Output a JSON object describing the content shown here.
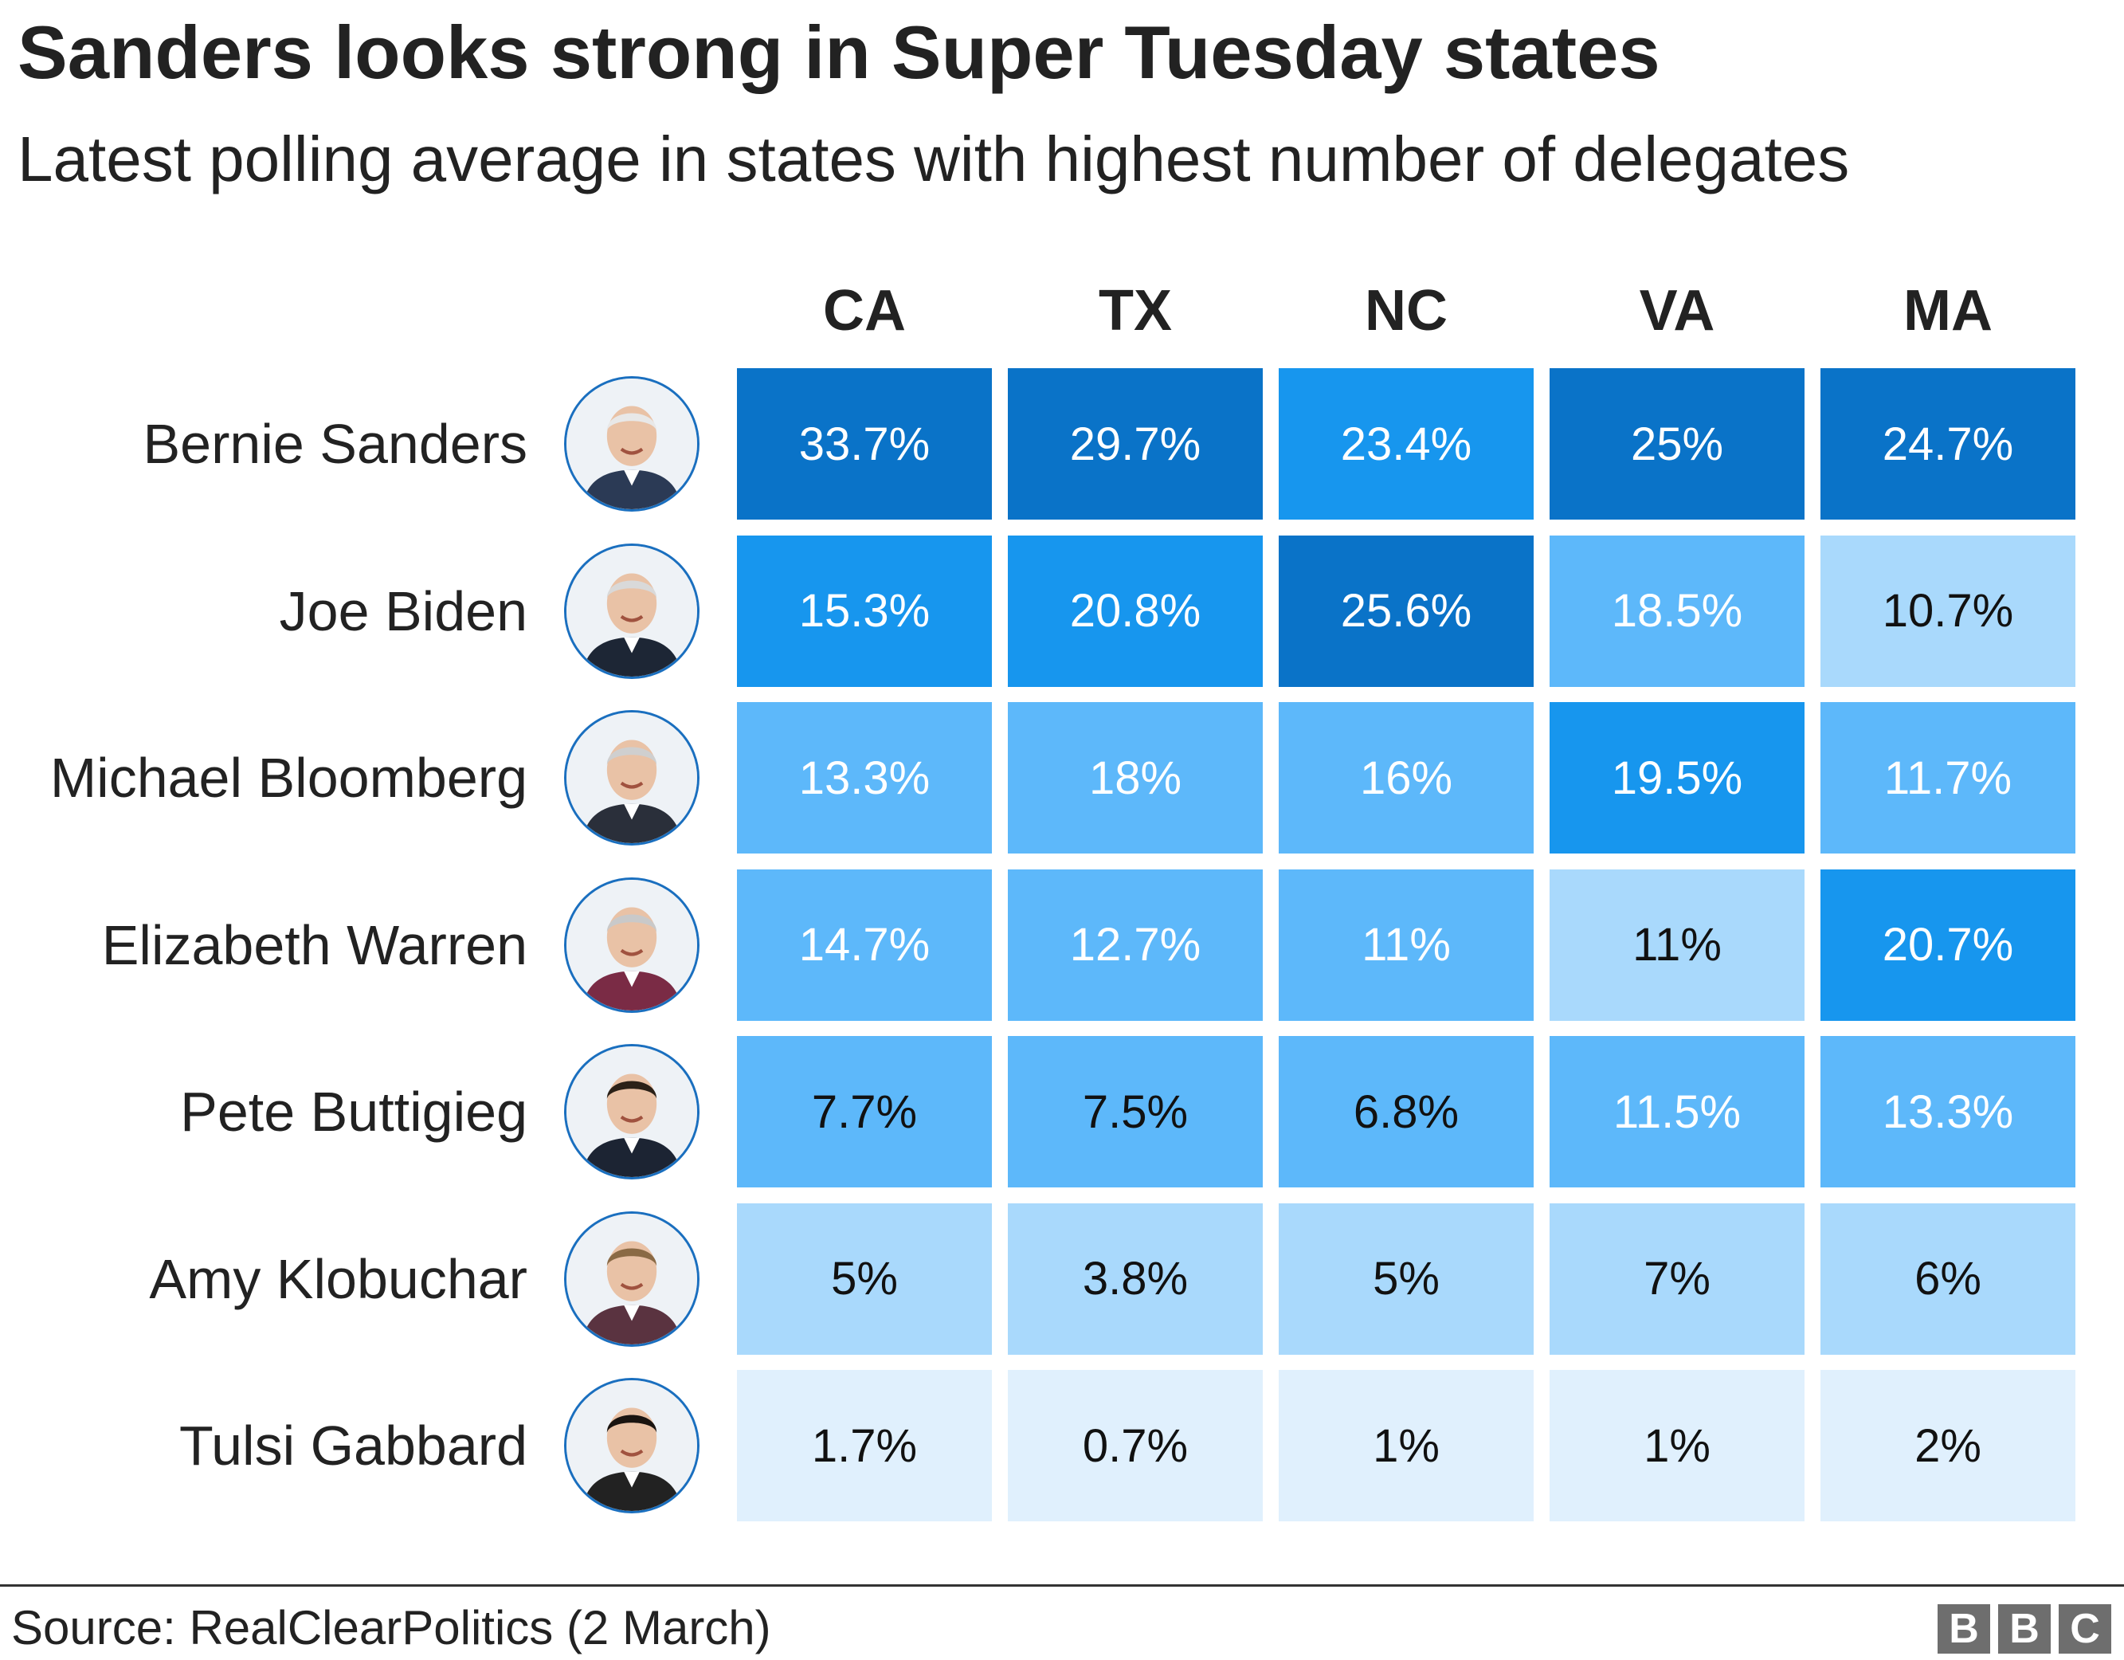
{
  "title": "Sanders looks strong in Super Tuesday states",
  "subtitle": "Latest polling average in states with highest number of delegates",
  "source": "Source: RealClearPolitics (2 March)",
  "logo": [
    "B",
    "B",
    "C"
  ],
  "colors": {
    "darkest": "#0a73c8",
    "dark": "#1796ee",
    "mid": "#5db8fa",
    "light": "#a9d9fc",
    "lightest": "#e0f0fd",
    "text_light": "#ffffff",
    "text_dark": "#111111"
  },
  "chart_data": {
    "type": "table",
    "title": "Sanders looks strong in Super Tuesday states",
    "subtitle": "Latest polling average in states with highest number of delegates",
    "columns": [
      "CA",
      "TX",
      "NC",
      "VA",
      "MA"
    ],
    "rows": [
      {
        "name": "Bernie Sanders",
        "avatar": "bernie-sanders-avatar",
        "values": [
          33.7,
          29.7,
          23.4,
          25,
          24.7
        ],
        "labels": [
          "33.7%",
          "29.7%",
          "23.4%",
          "25%",
          "24.7%"
        ],
        "shade": [
          "darkest",
          "darkest",
          "dark",
          "darkest",
          "darkest"
        ]
      },
      {
        "name": "Joe Biden",
        "avatar": "joe-biden-avatar",
        "values": [
          15.3,
          20.8,
          25.6,
          18.5,
          10.7
        ],
        "labels": [
          "15.3%",
          "20.8%",
          "25.6%",
          "18.5%",
          "10.7%"
        ],
        "shade": [
          "dark",
          "dark",
          "darkest",
          "mid",
          "light"
        ]
      },
      {
        "name": "Michael Bloomberg",
        "avatar": "michael-bloomberg-avatar",
        "values": [
          13.3,
          18,
          16,
          19.5,
          11.7
        ],
        "labels": [
          "13.3%",
          "18%",
          "16%",
          "19.5%",
          "11.7%"
        ],
        "shade": [
          "mid",
          "mid",
          "mid",
          "dark",
          "mid"
        ]
      },
      {
        "name": "Elizabeth Warren",
        "avatar": "elizabeth-warren-avatar",
        "values": [
          14.7,
          12.7,
          11,
          11,
          20.7
        ],
        "labels": [
          "14.7%",
          "12.7%",
          "11%",
          "11%",
          "20.7%"
        ],
        "shade": [
          "mid",
          "mid",
          "mid",
          "light",
          "dark"
        ]
      },
      {
        "name": "Pete Buttigieg",
        "avatar": "pete-buttigieg-avatar",
        "values": [
          7.7,
          7.5,
          6.8,
          11.5,
          13.3
        ],
        "labels": [
          "7.7%",
          "7.5%",
          "6.8%",
          "11.5%",
          "13.3%"
        ],
        "shade": [
          "mid",
          "mid",
          "mid",
          "mid",
          "mid"
        ]
      },
      {
        "name": "Amy Klobuchar",
        "avatar": "amy-klobuchar-avatar",
        "values": [
          5,
          3.8,
          5,
          7,
          6
        ],
        "labels": [
          "5%",
          "3.8%",
          "5%",
          "7%",
          "6%"
        ],
        "shade": [
          "light",
          "light",
          "light",
          "light",
          "light"
        ]
      },
      {
        "name": "Tulsi Gabbard",
        "avatar": "tulsi-gabbard-avatar",
        "values": [
          1.7,
          0.7,
          1,
          1,
          2
        ],
        "labels": [
          "1.7%",
          "0.7%",
          "1%",
          "1%",
          "2%"
        ],
        "shade": [
          "lightest",
          "lightest",
          "lightest",
          "lightest",
          "lightest"
        ]
      }
    ]
  }
}
